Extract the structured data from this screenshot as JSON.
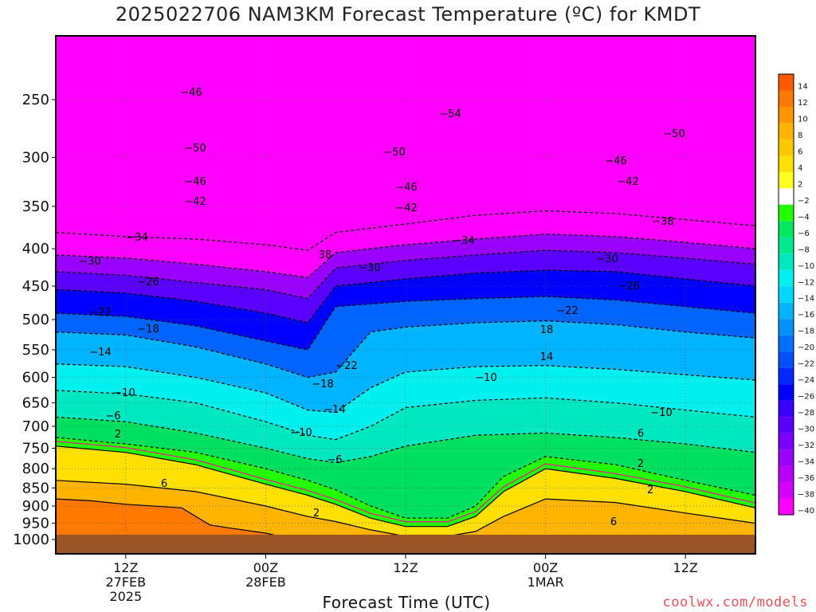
{
  "chart_data": {
    "type": "heatmap",
    "title": "2025022706 NAM3KM Forecast Temperature (ºC) for KMDT",
    "xlabel": "Forecast Time (UTC)",
    "ylabel": "",
    "y_scale": "log-pressure",
    "ylim": [
      1000,
      200
    ],
    "y_ticks": [
      250,
      300,
      350,
      400,
      450,
      500,
      550,
      600,
      650,
      700,
      750,
      800,
      850,
      900,
      950,
      1000
    ],
    "x_ticks": [
      {
        "line1": "12Z",
        "line2": "27FEB",
        "line3": "2025"
      },
      {
        "line1": "00Z",
        "line2": "28FEB",
        "line3": ""
      },
      {
        "line1": "12Z",
        "line2": "",
        "line3": ""
      },
      {
        "line1": "00Z",
        "line2": "1MAR",
        "line3": ""
      },
      {
        "line1": "12Z",
        "line2": "",
        "line3": ""
      }
    ],
    "colorbar_levels": [
      14,
      12,
      10,
      8,
      6,
      4,
      2,
      -2,
      -4,
      -6,
      -8,
      -10,
      -12,
      -14,
      -16,
      -18,
      -20,
      -22,
      -24,
      -26,
      -28,
      -30,
      -32,
      -34,
      -36,
      -38,
      -40
    ],
    "contour_labels": [
      "-46",
      "-50",
      "-46",
      "-42",
      "-34",
      "-30",
      "-26",
      "-22",
      "-18",
      "-14",
      "-10",
      "-6",
      "2",
      "6",
      "-54",
      "-50",
      "-46",
      "-42",
      "38",
      "-30",
      "-22",
      "-18",
      "-14",
      "-10",
      "-6",
      "2",
      "-34",
      "-10",
      "-22",
      "18",
      "14",
      "-50",
      "-46",
      "-42",
      "-38",
      "-30",
      "-26",
      "-10",
      "6",
      "2",
      "2",
      "6"
    ],
    "layers": [
      {
        "temp": -48,
        "x": [
          0,
          0.1,
          0.2,
          0.3,
          0.4,
          0.5,
          0.6,
          0.7,
          0.8,
          0.9,
          1.0
        ],
        "y": [
          200,
          200,
          200,
          200,
          200,
          200,
          200,
          200,
          200,
          200,
          200
        ]
      },
      {
        "temp": -40,
        "x": [
          0,
          0.1,
          0.2,
          0.3,
          0.36,
          0.4,
          0.5,
          0.6,
          0.7,
          0.8,
          0.9,
          1.0
        ],
        "y": [
          380,
          385,
          388,
          395,
          402,
          380,
          370,
          360,
          355,
          358,
          365,
          372
        ]
      },
      {
        "temp": -34,
        "x": [
          0,
          0.1,
          0.2,
          0.3,
          0.36,
          0.4,
          0.5,
          0.6,
          0.7,
          0.8,
          0.9,
          1.0
        ],
        "y": [
          408,
          412,
          420,
          430,
          438,
          405,
          395,
          388,
          382,
          385,
          392,
          400
        ]
      },
      {
        "temp": -30,
        "x": [
          0,
          0.1,
          0.2,
          0.3,
          0.36,
          0.4,
          0.5,
          0.6,
          0.7,
          0.8,
          0.9,
          1.0
        ],
        "y": [
          430,
          435,
          445,
          455,
          468,
          425,
          415,
          408,
          402,
          405,
          412,
          420
        ]
      },
      {
        "temp": -26,
        "x": [
          0,
          0.1,
          0.2,
          0.3,
          0.36,
          0.4,
          0.5,
          0.6,
          0.7,
          0.8,
          0.9,
          1.0
        ],
        "y": [
          455,
          460,
          472,
          490,
          505,
          450,
          440,
          432,
          428,
          430,
          440,
          450
        ]
      },
      {
        "temp": -22,
        "x": [
          0,
          0.1,
          0.2,
          0.3,
          0.36,
          0.4,
          0.5,
          0.6,
          0.7,
          0.8,
          0.9,
          1.0
        ],
        "y": [
          490,
          495,
          510,
          535,
          550,
          480,
          472,
          468,
          465,
          470,
          480,
          490
        ]
      },
      {
        "temp": -18,
        "x": [
          0,
          0.1,
          0.2,
          0.3,
          0.36,
          0.4,
          0.45,
          0.5,
          0.6,
          0.7,
          0.8,
          0.9,
          1.0
        ],
        "y": [
          520,
          525,
          545,
          575,
          600,
          590,
          520,
          512,
          505,
          502,
          508,
          520,
          530
        ]
      },
      {
        "temp": -14,
        "x": [
          0,
          0.1,
          0.2,
          0.3,
          0.36,
          0.4,
          0.45,
          0.5,
          0.6,
          0.7,
          0.8,
          0.9,
          1.0
        ],
        "y": [
          575,
          580,
          600,
          630,
          665,
          670,
          620,
          590,
          580,
          578,
          585,
          595,
          605
        ]
      },
      {
        "temp": -10,
        "x": [
          0,
          0.1,
          0.2,
          0.3,
          0.36,
          0.4,
          0.45,
          0.5,
          0.6,
          0.7,
          0.8,
          0.9,
          1.0
        ],
        "y": [
          625,
          632,
          650,
          690,
          720,
          730,
          700,
          660,
          645,
          640,
          650,
          665,
          680
        ]
      },
      {
        "temp": -6,
        "x": [
          0,
          0.1,
          0.2,
          0.3,
          0.36,
          0.4,
          0.45,
          0.5,
          0.6,
          0.7,
          0.8,
          0.9,
          1.0
        ],
        "y": [
          680,
          690,
          715,
          750,
          775,
          785,
          770,
          745,
          720,
          715,
          725,
          740,
          760
        ]
      },
      {
        "temp": -2,
        "x": [
          0,
          0.1,
          0.2,
          0.3,
          0.36,
          0.4,
          0.45,
          0.5,
          0.56,
          0.6,
          0.64,
          0.7,
          0.8,
          0.9,
          1.0
        ],
        "y": [
          725,
          740,
          760,
          800,
          830,
          855,
          900,
          935,
          935,
          900,
          820,
          770,
          790,
          830,
          870
        ]
      },
      {
        "temp": 2,
        "x": [
          0,
          0.1,
          0.2,
          0.3,
          0.36,
          0.4,
          0.45,
          0.5,
          0.56,
          0.6,
          0.64,
          0.7,
          0.8,
          0.9,
          1.0
        ],
        "y": [
          745,
          760,
          790,
          840,
          870,
          895,
          935,
          960,
          960,
          930,
          860,
          800,
          825,
          860,
          905
        ]
      },
      {
        "temp": 6,
        "x": [
          0,
          0.1,
          0.2,
          0.3,
          0.36,
          0.4,
          0.45,
          0.5,
          0.56,
          0.6,
          0.64,
          0.7,
          0.8,
          0.9,
          1.0
        ],
        "y": [
          830,
          840,
          860,
          900,
          930,
          945,
          970,
          990,
          990,
          975,
          930,
          880,
          890,
          920,
          950
        ]
      },
      {
        "temp": 12,
        "x": [
          0,
          0.05,
          0.1,
          0.18,
          0.22,
          0.25,
          0.3,
          0.34
        ],
        "y": [
          880,
          885,
          895,
          905,
          955,
          965,
          980,
          1000
        ]
      }
    ],
    "grid": true,
    "legend_placement": "right"
  },
  "credit": "coolwx.com/models"
}
